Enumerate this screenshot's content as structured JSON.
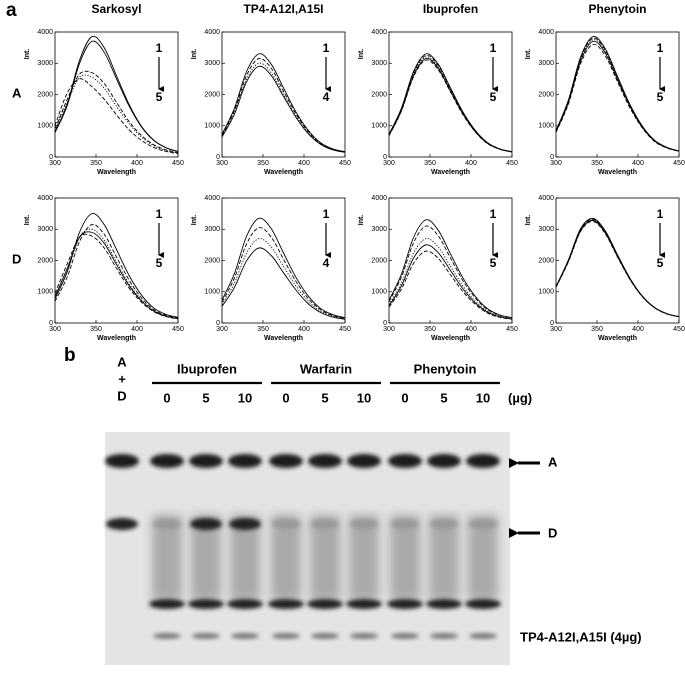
{
  "panel_labels": [
    "a",
    "b"
  ],
  "row_labels": [
    "A",
    "D"
  ],
  "chart_data": [
    {
      "type": "line",
      "title": "Sarkosyl",
      "y_label": "Int.",
      "x_label": "Wavelength",
      "annotation_start": "1",
      "annotation_end": "5",
      "x": [
        300,
        315,
        330,
        345,
        360,
        375,
        390,
        405,
        420,
        435,
        450
      ],
      "xlim": [
        300,
        450
      ],
      "xticks": [
        300,
        350,
        400,
        450
      ],
      "ylim": [
        0,
        4000
      ],
      "yticks": [
        0,
        1000,
        2000,
        3000,
        4000
      ],
      "color": "#000000",
      "series": [
        {
          "dash": "solid",
          "values": [
            800,
            1700,
            3100,
            3850,
            3500,
            2600,
            1700,
            1000,
            550,
            300,
            180
          ]
        },
        {
          "dash": "solid",
          "values": [
            780,
            1650,
            3000,
            3700,
            3350,
            2500,
            1650,
            980,
            540,
            300,
            170
          ]
        },
        {
          "dash": "dashed",
          "values": [
            900,
            1850,
            2650,
            2700,
            2350,
            1750,
            1150,
            700,
            400,
            230,
            140
          ]
        },
        {
          "dash": "dotted",
          "values": [
            850,
            1750,
            2550,
            2550,
            2200,
            1620,
            1080,
            650,
            370,
            210,
            130
          ]
        },
        {
          "dash": "dashed",
          "values": [
            1000,
            2050,
            2500,
            2250,
            1850,
            1350,
            880,
            540,
            310,
            180,
            110
          ]
        }
      ]
    },
    {
      "type": "line",
      "title": "TP4-A12I,A15I",
      "y_label": "Int.",
      "x_label": "Wavelength",
      "annotation_start": "1",
      "annotation_end": "4",
      "x": [
        300,
        315,
        330,
        345,
        360,
        375,
        390,
        405,
        420,
        435,
        450
      ],
      "xlim": [
        300,
        450
      ],
      "xticks": [
        300,
        350,
        400,
        450
      ],
      "ylim": [
        0,
        4000
      ],
      "yticks": [
        0,
        1000,
        2000,
        3000,
        4000
      ],
      "color": "#000000",
      "series": [
        {
          "dash": "solid",
          "values": [
            730,
            1550,
            2740,
            3300,
            2970,
            2210,
            1450,
            860,
            460,
            260,
            170
          ]
        },
        {
          "dash": "dashed",
          "values": [
            690,
            1480,
            2610,
            3150,
            2840,
            2110,
            1390,
            820,
            440,
            250,
            160
          ]
        },
        {
          "dash": "dotted",
          "values": [
            660,
            1410,
            2490,
            3000,
            2700,
            2010,
            1320,
            780,
            420,
            240,
            150
          ]
        },
        {
          "dash": "solid",
          "values": [
            640,
            1360,
            2410,
            2900,
            2610,
            1940,
            1280,
            750,
            410,
            230,
            150
          ]
        }
      ]
    },
    {
      "type": "line",
      "title": "Ibuprofen",
      "y_label": "Int.",
      "x_label": "Wavelength",
      "annotation_start": "1",
      "annotation_end": "5",
      "x": [
        300,
        315,
        330,
        345,
        360,
        375,
        390,
        405,
        420,
        435,
        450
      ],
      "xlim": [
        300,
        450
      ],
      "xticks": [
        300,
        350,
        400,
        450
      ],
      "ylim": [
        0,
        4000
      ],
      "yticks": [
        0,
        1000,
        2000,
        3000,
        4000
      ],
      "color": "#000000",
      "series": [
        {
          "dash": "solid",
          "values": [
            730,
            1550,
            2740,
            3300,
            2970,
            2210,
            1450,
            860,
            460,
            260,
            170
          ]
        },
        {
          "dash": "dashed",
          "values": [
            720,
            1530,
            2700,
            3250,
            2930,
            2180,
            1430,
            850,
            460,
            260,
            160
          ]
        },
        {
          "dash": "dotted",
          "values": [
            700,
            1500,
            2660,
            3200,
            2880,
            2140,
            1410,
            830,
            450,
            260,
            160
          ]
        },
        {
          "dash": "solid",
          "values": [
            690,
            1480,
            2610,
            3150,
            2840,
            2110,
            1390,
            820,
            440,
            250,
            160
          ]
        },
        {
          "dash": "dashed",
          "values": [
            680,
            1460,
            2570,
            3100,
            2790,
            2080,
            1360,
            810,
            430,
            250,
            160
          ]
        }
      ]
    },
    {
      "type": "line",
      "title": "Phenytoin",
      "y_label": "Int.",
      "x_label": "Wavelength",
      "annotation_start": "1",
      "annotation_end": "5",
      "x": [
        300,
        315,
        330,
        345,
        360,
        375,
        390,
        405,
        420,
        435,
        450
      ],
      "xlim": [
        300,
        450
      ],
      "xticks": [
        300,
        350,
        400,
        450
      ],
      "ylim": [
        0,
        4000
      ],
      "yticks": [
        0,
        1000,
        2000,
        3000,
        4000
      ],
      "color": "#000000",
      "series": [
        {
          "dash": "solid",
          "values": [
            850,
            1810,
            3200,
            3850,
            3470,
            2580,
            1690,
            1000,
            540,
            310,
            190
          ]
        },
        {
          "dash": "dashed",
          "values": [
            840,
            1790,
            3150,
            3800,
            3420,
            2550,
            1670,
            990,
            530,
            300,
            190
          ]
        },
        {
          "dash": "dotted",
          "values": [
            830,
            1760,
            3110,
            3750,
            3380,
            2510,
            1650,
            980,
            530,
            300,
            190
          ]
        },
        {
          "dash": "solid",
          "values": [
            810,
            1740,
            3070,
            3700,
            3330,
            2480,
            1630,
            960,
            520,
            300,
            190
          ]
        },
        {
          "dash": "dashed",
          "values": [
            790,
            1690,
            2990,
            3600,
            3240,
            2410,
            1580,
            940,
            500,
            290,
            180
          ]
        }
      ]
    },
    {
      "type": "line",
      "y_label": "Int.",
      "x_label": "Wavelength",
      "annotation_start": "1",
      "annotation_end": "5",
      "x": [
        300,
        315,
        330,
        345,
        360,
        375,
        390,
        405,
        420,
        435,
        450
      ],
      "xlim": [
        300,
        450
      ],
      "xticks": [
        300,
        350,
        400,
        450
      ],
      "ylim": [
        0,
        4000
      ],
      "yticks": [
        0,
        1000,
        2000,
        3000,
        4000
      ],
      "color": "#000000",
      "series": [
        {
          "dash": "solid",
          "values": [
            770,
            1650,
            2910,
            3500,
            3150,
            2350,
            1540,
            910,
            490,
            280,
            180
          ]
        },
        {
          "dash": "dashed",
          "values": [
            690,
            1480,
            2610,
            3150,
            2840,
            2110,
            1390,
            820,
            440,
            250,
            160
          ]
        },
        {
          "dash": "dotted",
          "values": [
            800,
            1650,
            2750,
            3000,
            2650,
            1950,
            1270,
            750,
            400,
            230,
            150
          ]
        },
        {
          "dash": "solid",
          "values": [
            850,
            1750,
            2750,
            2900,
            2550,
            1870,
            1210,
            720,
            390,
            220,
            140
          ]
        },
        {
          "dash": "dashed",
          "values": [
            950,
            1900,
            2750,
            2780,
            2400,
            1750,
            1130,
            680,
            370,
            210,
            130
          ]
        }
      ]
    },
    {
      "type": "line",
      "y_label": "Int.",
      "x_label": "Wavelength",
      "annotation_start": "1",
      "annotation_end": "4",
      "x": [
        300,
        315,
        330,
        345,
        360,
        375,
        390,
        405,
        420,
        435,
        450
      ],
      "xlim": [
        300,
        450
      ],
      "xticks": [
        300,
        350,
        400,
        450
      ],
      "ylim": [
        0,
        4000
      ],
      "yticks": [
        0,
        1000,
        2000,
        3000,
        4000
      ],
      "color": "#000000",
      "series": [
        {
          "dash": "solid",
          "values": [
            740,
            1570,
            2780,
            3350,
            3020,
            2240,
            1470,
            870,
            470,
            270,
            170
          ]
        },
        {
          "dash": "dashed",
          "values": [
            670,
            1430,
            2530,
            3050,
            2750,
            2040,
            1340,
            790,
            430,
            240,
            150
          ]
        },
        {
          "dash": "dotted",
          "values": [
            590,
            1270,
            2240,
            2700,
            2430,
            1810,
            1190,
            700,
            380,
            220,
            140
          ]
        },
        {
          "dash": "solid",
          "values": [
            530,
            1130,
            1990,
            2400,
            2160,
            1610,
            1060,
            620,
            340,
            190,
            120
          ]
        }
      ]
    },
    {
      "type": "line",
      "y_label": "Int.",
      "x_label": "Wavelength",
      "annotation_start": "1",
      "annotation_end": "5",
      "x": [
        300,
        315,
        330,
        345,
        360,
        375,
        390,
        405,
        420,
        435,
        450
      ],
      "xlim": [
        300,
        450
      ],
      "xticks": [
        300,
        350,
        400,
        450
      ],
      "ylim": [
        0,
        4000
      ],
      "yticks": [
        0,
        1000,
        2000,
        3000,
        4000
      ],
      "color": "#000000",
      "series": [
        {
          "dash": "solid",
          "values": [
            730,
            1550,
            2740,
            3300,
            2970,
            2210,
            1450,
            860,
            460,
            260,
            170
          ]
        },
        {
          "dash": "dashed",
          "values": [
            680,
            1460,
            2570,
            3100,
            2790,
            2080,
            1360,
            810,
            430,
            250,
            160
          ]
        },
        {
          "dash": "dotted",
          "values": [
            590,
            1270,
            2240,
            2700,
            2430,
            1810,
            1190,
            700,
            380,
            220,
            140
          ]
        },
        {
          "dash": "solid",
          "values": [
            550,
            1180,
            2080,
            2500,
            2250,
            1680,
            1100,
            650,
            350,
            200,
            130
          ]
        },
        {
          "dash": "dashed",
          "values": [
            510,
            1080,
            1910,
            2300,
            2070,
            1540,
            1010,
            600,
            320,
            180,
            120
          ]
        }
      ]
    },
    {
      "type": "line",
      "y_label": "Int.",
      "x_label": "Wavelength",
      "annotation_start": "1",
      "annotation_end": "5",
      "x": [
        300,
        315,
        330,
        345,
        360,
        375,
        390,
        405,
        420,
        435,
        450
      ],
      "xlim": [
        300,
        450
      ],
      "xticks": [
        300,
        350,
        400,
        450
      ],
      "ylim": [
        0,
        4000
      ],
      "yticks": [
        0,
        1000,
        2000,
        3000,
        4000
      ],
      "color": "#000000",
      "series": [
        {
          "dash": "solid",
          "values": [
            1170,
            2010,
            3020,
            3350,
            2950,
            2180,
            1440,
            870,
            500,
            300,
            200
          ]
        },
        {
          "dash": "dashed",
          "values": [
            1160,
            1990,
            2990,
            3320,
            2920,
            2160,
            1430,
            860,
            500,
            300,
            200
          ]
        },
        {
          "dash": "dotted",
          "values": [
            1160,
            1980,
            2970,
            3300,
            2900,
            2150,
            1420,
            860,
            500,
            300,
            200
          ]
        },
        {
          "dash": "solid",
          "values": [
            1150,
            1970,
            2950,
            3280,
            2890,
            2130,
            1410,
            860,
            490,
            300,
            200
          ]
        },
        {
          "dash": "dashed",
          "values": [
            1140,
            1950,
            2930,
            3250,
            2860,
            2110,
            1400,
            850,
            490,
            290,
            200
          ]
        }
      ]
    }
  ],
  "gel": {
    "control_lane": [
      "A",
      "+",
      "D"
    ],
    "groups": [
      {
        "label": "Ibuprofen",
        "doses": [
          0,
          5,
          10
        ]
      },
      {
        "label": "Warfarin",
        "doses": [
          0,
          5,
          10
        ]
      },
      {
        "label": "Phenytoin",
        "doses": [
          0,
          5,
          10
        ]
      }
    ],
    "dose_unit": "(µg)",
    "band_labels": [
      "A",
      "D"
    ],
    "peptide_label": "TP4-A12I,A15I (4µg)"
  }
}
